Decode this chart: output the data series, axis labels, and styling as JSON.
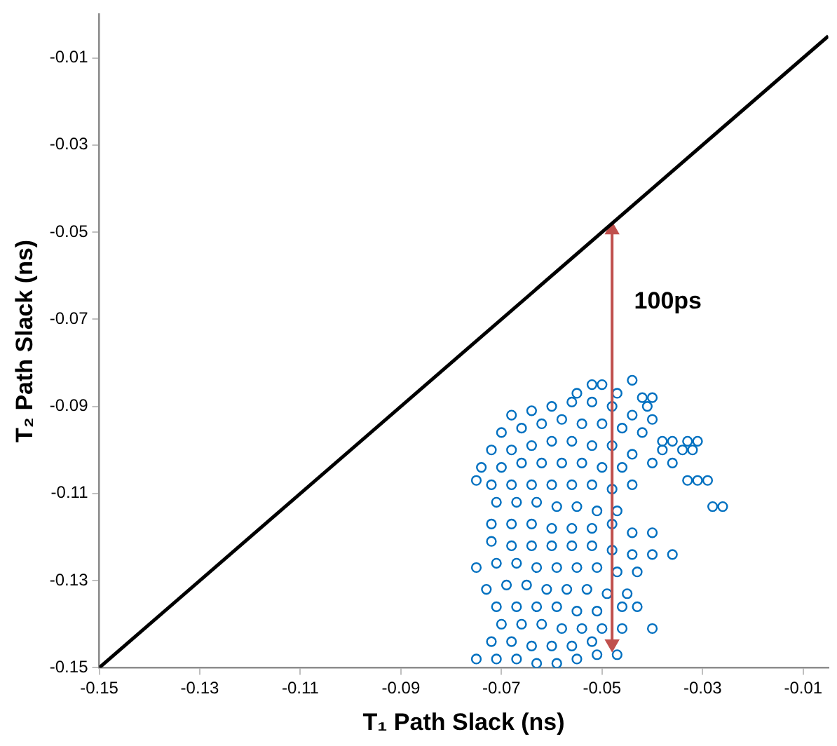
{
  "chart_data": {
    "type": "scatter",
    "xlabel": "T₁ Path Slack (ns)",
    "ylabel": "T₂ Path Slack (ns)",
    "xlim": [
      -0.15,
      -0.005
    ],
    "ylim": [
      -0.15,
      0
    ],
    "xticks": [
      -0.15,
      -0.13,
      -0.11,
      -0.09,
      -0.07,
      -0.05,
      -0.03,
      -0.01
    ],
    "yticks": [
      -0.15,
      -0.13,
      -0.11,
      -0.09,
      -0.07,
      -0.05,
      -0.03,
      -0.01
    ],
    "grid": false,
    "legend": false,
    "marker": "circle",
    "annotations": [
      "100ps"
    ],
    "series": [
      {
        "type": "line",
        "color": "#000000",
        "marker": "none",
        "x": [
          -0.15,
          -0.005
        ],
        "values": [
          -0.15,
          -0.005
        ]
      },
      {
        "type": "line",
        "color": "#c0504d",
        "marker": "triangle",
        "x": [
          -0.048,
          -0.048
        ],
        "values": [
          -0.0495,
          -0.1445
        ]
      },
      {
        "type": "scatter",
        "color": "#0070c0",
        "x": [
          -0.052,
          -0.05,
          -0.044,
          -0.055,
          -0.047,
          -0.042,
          -0.04,
          -0.041,
          -0.068,
          -0.064,
          -0.06,
          -0.056,
          -0.052,
          -0.048,
          -0.044,
          -0.04,
          -0.07,
          -0.066,
          -0.062,
          -0.058,
          -0.054,
          -0.05,
          -0.046,
          -0.042,
          -0.038,
          -0.036,
          -0.033,
          -0.031,
          -0.038,
          -0.034,
          -0.032,
          -0.072,
          -0.068,
          -0.064,
          -0.06,
          -0.056,
          -0.052,
          -0.048,
          -0.044,
          -0.074,
          -0.07,
          -0.066,
          -0.062,
          -0.058,
          -0.054,
          -0.05,
          -0.046,
          -0.04,
          -0.036,
          -0.033,
          -0.031,
          -0.029,
          -0.075,
          -0.072,
          -0.068,
          -0.064,
          -0.06,
          -0.056,
          -0.052,
          -0.048,
          -0.044,
          -0.028,
          -0.026,
          -0.071,
          -0.067,
          -0.063,
          -0.059,
          -0.055,
          -0.051,
          -0.047,
          -0.072,
          -0.068,
          -0.064,
          -0.06,
          -0.056,
          -0.052,
          -0.048,
          -0.044,
          -0.04,
          -0.072,
          -0.068,
          -0.064,
          -0.06,
          -0.056,
          -0.052,
          -0.048,
          -0.044,
          -0.04,
          -0.036,
          -0.075,
          -0.071,
          -0.067,
          -0.063,
          -0.059,
          -0.055,
          -0.051,
          -0.047,
          -0.043,
          -0.073,
          -0.069,
          -0.065,
          -0.061,
          -0.057,
          -0.053,
          -0.049,
          -0.045,
          -0.071,
          -0.067,
          -0.063,
          -0.059,
          -0.055,
          -0.051,
          -0.046,
          -0.043,
          -0.07,
          -0.066,
          -0.062,
          -0.058,
          -0.054,
          -0.05,
          -0.046,
          -0.04,
          -0.072,
          -0.068,
          -0.064,
          -0.06,
          -0.056,
          -0.052,
          -0.075,
          -0.071,
          -0.067,
          -0.063,
          -0.059,
          -0.055,
          -0.051,
          -0.047
        ],
        "values": [
          -0.085,
          -0.085,
          -0.084,
          -0.087,
          -0.087,
          -0.088,
          -0.088,
          -0.09,
          -0.092,
          -0.091,
          -0.09,
          -0.089,
          -0.089,
          -0.09,
          -0.092,
          -0.093,
          -0.096,
          -0.095,
          -0.094,
          -0.093,
          -0.094,
          -0.094,
          -0.095,
          -0.096,
          -0.098,
          -0.098,
          -0.098,
          -0.098,
          -0.1,
          -0.1,
          -0.1,
          -0.1,
          -0.1,
          -0.099,
          -0.098,
          -0.098,
          -0.099,
          -0.099,
          -0.101,
          -0.104,
          -0.104,
          -0.103,
          -0.103,
          -0.103,
          -0.103,
          -0.104,
          -0.104,
          -0.103,
          -0.103,
          -0.107,
          -0.107,
          -0.107,
          -0.107,
          -0.108,
          -0.108,
          -0.108,
          -0.108,
          -0.108,
          -0.108,
          -0.109,
          -0.108,
          -0.113,
          -0.113,
          -0.112,
          -0.112,
          -0.112,
          -0.113,
          -0.113,
          -0.114,
          -0.114,
          -0.117,
          -0.117,
          -0.117,
          -0.118,
          -0.118,
          -0.118,
          -0.117,
          -0.119,
          -0.119,
          -0.121,
          -0.122,
          -0.122,
          -0.122,
          -0.122,
          -0.122,
          -0.123,
          -0.124,
          -0.124,
          -0.124,
          -0.127,
          -0.126,
          -0.126,
          -0.127,
          -0.127,
          -0.127,
          -0.127,
          -0.128,
          -0.128,
          -0.132,
          -0.131,
          -0.131,
          -0.132,
          -0.132,
          -0.132,
          -0.133,
          -0.133,
          -0.136,
          -0.136,
          -0.136,
          -0.136,
          -0.137,
          -0.137,
          -0.136,
          -0.136,
          -0.14,
          -0.14,
          -0.14,
          -0.141,
          -0.141,
          -0.141,
          -0.141,
          -0.141,
          -0.144,
          -0.144,
          -0.145,
          -0.145,
          -0.145,
          -0.144,
          -0.148,
          -0.148,
          -0.148,
          -0.149,
          -0.149,
          -0.148,
          -0.147,
          -0.147
        ]
      }
    ]
  }
}
